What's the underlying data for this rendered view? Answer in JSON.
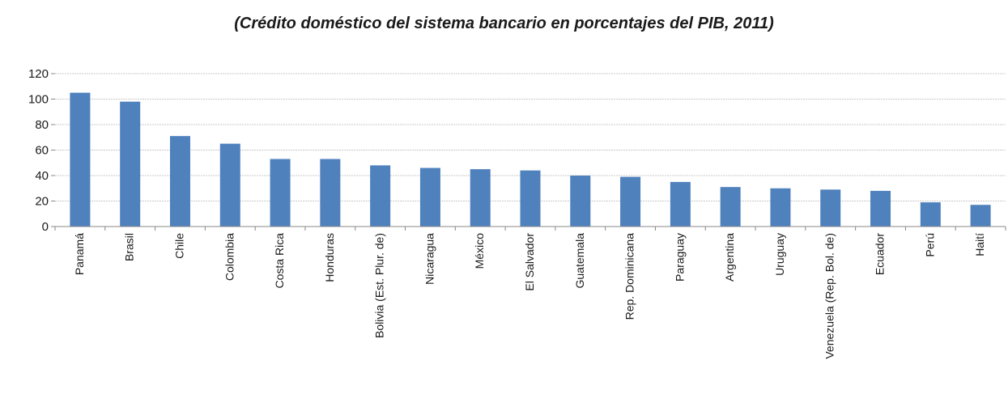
{
  "chart_data": {
    "type": "bar",
    "title": "(Crédito doméstico del sistema bancario en porcentajes del PIB, 2011)",
    "xlabel": "",
    "ylabel": "",
    "ylim": [
      0,
      120
    ],
    "yticks": [
      0,
      20,
      40,
      60,
      80,
      100,
      120
    ],
    "grid": true,
    "categories": [
      "Panamá",
      "Brasil",
      "Chile",
      "Colombia",
      "Costa Rica",
      "Honduras",
      "Bolivia (Est. Plur. de)",
      "Nicaragua",
      "México",
      "El Salvador",
      "Guatemala",
      "Rep. Dominicana",
      "Paraguay",
      "Argentina",
      "Uruguay",
      "Venezuela (Rep. Bol. de)",
      "Ecuador",
      "Perú",
      "Haití"
    ],
    "values": [
      105,
      98,
      71,
      65,
      53,
      53,
      48,
      46,
      45,
      44,
      40,
      39,
      35,
      31,
      30,
      29,
      28,
      19,
      17
    ],
    "colors": {
      "bar": "#4f81bd",
      "grid": "#c8c8c8",
      "axis": "#888888"
    }
  }
}
